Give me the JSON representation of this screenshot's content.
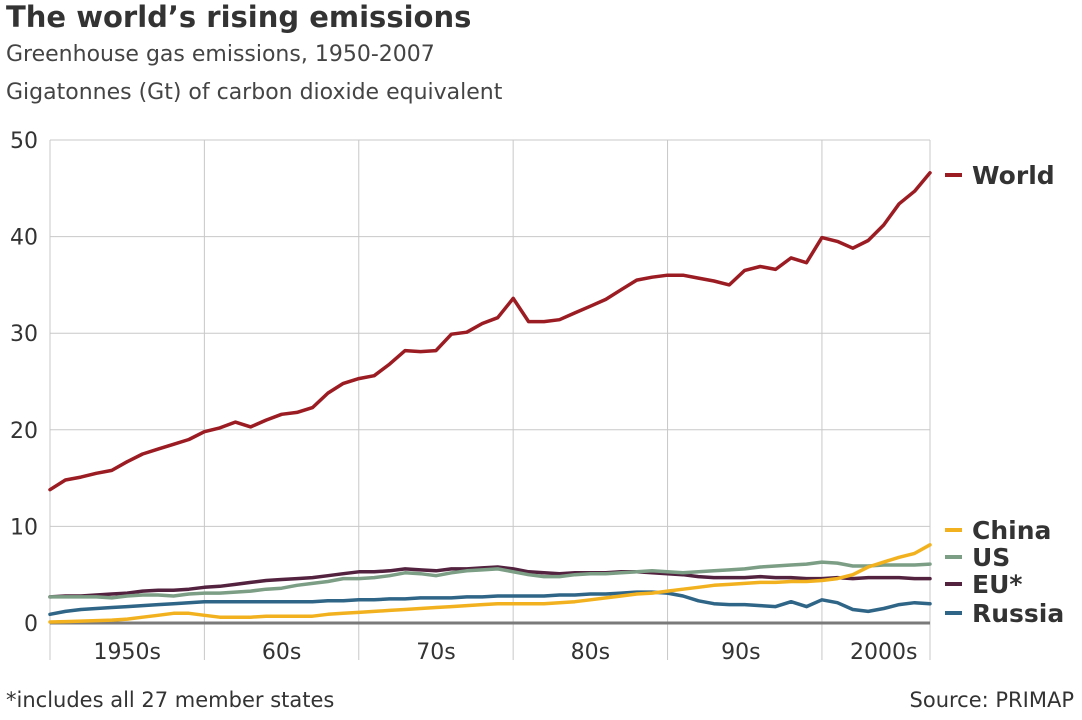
{
  "title": "The world’s rising emissions",
  "subtitle1": "Greenhouse gas emissions, 1950-2007",
  "subtitle2": "Gigatonnes (Gt) of carbon dioxide equivalent",
  "footnote": "*includes all 27 member states",
  "source": "Source: PRIMAP",
  "chart_data": {
    "type": "line",
    "title": "The world’s rising emissions",
    "subtitle": "Greenhouse gas emissions, 1950-2007",
    "ylabel": "Gigatonnes (Gt) of carbon dioxide equivalent",
    "xlim": [
      1950,
      2007
    ],
    "ylim": [
      0,
      50
    ],
    "yticks": [
      0,
      10,
      20,
      30,
      40,
      50
    ],
    "x_gridlines": [
      1960,
      1970,
      1980,
      1990,
      2000
    ],
    "decade_labels": [
      {
        "label": "1950s",
        "center": 1955
      },
      {
        "label": "60s",
        "center": 1965
      },
      {
        "label": "70s",
        "center": 1975
      },
      {
        "label": "80s",
        "center": 1985
      },
      {
        "label": "90s",
        "center": 1994.75
      },
      {
        "label": "2000s",
        "center": 2004
      }
    ],
    "x": [
      1950,
      1951,
      1952,
      1953,
      1954,
      1955,
      1956,
      1957,
      1958,
      1959,
      1960,
      1961,
      1962,
      1963,
      1964,
      1965,
      1966,
      1967,
      1968,
      1969,
      1970,
      1971,
      1972,
      1973,
      1974,
      1975,
      1976,
      1977,
      1978,
      1979,
      1980,
      1981,
      1982,
      1983,
      1984,
      1985,
      1986,
      1987,
      1988,
      1989,
      1990,
      1991,
      1992,
      1993,
      1994,
      1995,
      1996,
      1997,
      1998,
      1999,
      2000,
      2001,
      2002,
      2003,
      2004,
      2005,
      2006,
      2007
    ],
    "series": [
      {
        "name": "World",
        "color": "#9b1c22",
        "values": [
          13.8,
          14.8,
          15.1,
          15.5,
          15.8,
          16.7,
          17.5,
          18.0,
          18.5,
          19.0,
          19.8,
          20.2,
          20.8,
          20.3,
          21.0,
          21.6,
          21.8,
          22.3,
          23.8,
          24.8,
          25.3,
          25.6,
          26.8,
          28.2,
          28.1,
          28.2,
          29.9,
          30.1,
          31.0,
          31.6,
          33.6,
          31.2,
          31.2,
          31.4,
          32.1,
          32.8,
          33.5,
          34.5,
          35.5,
          35.8,
          36.0,
          36.0,
          35.7,
          35.4,
          35.0,
          36.5,
          36.9,
          36.6,
          37.8,
          37.3,
          39.9,
          39.5,
          38.8,
          39.6,
          41.2,
          43.4,
          44.7,
          46.6
        ]
      },
      {
        "name": "China",
        "color": "#f2b21f",
        "values": [
          0.1,
          0.15,
          0.2,
          0.25,
          0.3,
          0.4,
          0.6,
          0.8,
          1.0,
          1.0,
          0.8,
          0.6,
          0.6,
          0.6,
          0.7,
          0.7,
          0.7,
          0.7,
          0.9,
          1.0,
          1.1,
          1.2,
          1.3,
          1.4,
          1.5,
          1.6,
          1.7,
          1.8,
          1.9,
          2.0,
          2.0,
          2.0,
          2.0,
          2.1,
          2.2,
          2.4,
          2.6,
          2.8,
          3.0,
          3.1,
          3.3,
          3.5,
          3.7,
          3.9,
          4.0,
          4.1,
          4.2,
          4.2,
          4.3,
          4.3,
          4.4,
          4.6,
          5.0,
          5.8,
          6.3,
          6.8,
          7.2,
          8.1
        ]
      },
      {
        "name": "US",
        "color": "#7c9e85",
        "values": [
          2.7,
          2.7,
          2.7,
          2.7,
          2.6,
          2.8,
          2.9,
          2.9,
          2.8,
          3.0,
          3.1,
          3.1,
          3.2,
          3.3,
          3.5,
          3.6,
          3.9,
          4.1,
          4.3,
          4.6,
          4.6,
          4.7,
          4.9,
          5.2,
          5.1,
          4.9,
          5.2,
          5.4,
          5.5,
          5.6,
          5.3,
          5.0,
          4.8,
          4.8,
          5.0,
          5.1,
          5.1,
          5.2,
          5.3,
          5.4,
          5.3,
          5.2,
          5.3,
          5.4,
          5.5,
          5.6,
          5.8,
          5.9,
          6.0,
          6.1,
          6.3,
          6.2,
          5.9,
          5.9,
          6.0,
          6.0,
          6.0,
          6.1
        ]
      },
      {
        "name": "EU*",
        "color": "#53223f",
        "values": [
          2.7,
          2.8,
          2.8,
          2.9,
          3.0,
          3.1,
          3.3,
          3.4,
          3.4,
          3.5,
          3.7,
          3.8,
          4.0,
          4.2,
          4.4,
          4.5,
          4.6,
          4.7,
          4.9,
          5.1,
          5.3,
          5.3,
          5.4,
          5.6,
          5.5,
          5.4,
          5.6,
          5.6,
          5.7,
          5.8,
          5.6,
          5.3,
          5.2,
          5.1,
          5.2,
          5.2,
          5.2,
          5.3,
          5.3,
          5.2,
          5.1,
          5.0,
          4.8,
          4.7,
          4.7,
          4.7,
          4.8,
          4.7,
          4.7,
          4.6,
          4.6,
          4.7,
          4.6,
          4.7,
          4.7,
          4.7,
          4.6,
          4.6
        ]
      },
      {
        "name": "Russia",
        "color": "#2f6586",
        "values": [
          0.9,
          1.2,
          1.4,
          1.5,
          1.6,
          1.7,
          1.8,
          1.9,
          2.0,
          2.1,
          2.2,
          2.2,
          2.2,
          2.2,
          2.2,
          2.2,
          2.2,
          2.2,
          2.3,
          2.3,
          2.4,
          2.4,
          2.5,
          2.5,
          2.6,
          2.6,
          2.6,
          2.7,
          2.7,
          2.8,
          2.8,
          2.8,
          2.8,
          2.9,
          2.9,
          3.0,
          3.0,
          3.1,
          3.2,
          3.2,
          3.1,
          2.8,
          2.3,
          2.0,
          1.9,
          1.9,
          1.8,
          1.7,
          2.2,
          1.7,
          2.4,
          2.1,
          1.4,
          1.2,
          1.5,
          1.9,
          2.1,
          2.0
        ]
      }
    ],
    "legend": {
      "placement": "right",
      "order": [
        "World",
        "China",
        "US",
        "EU*",
        "Russia"
      ]
    }
  }
}
